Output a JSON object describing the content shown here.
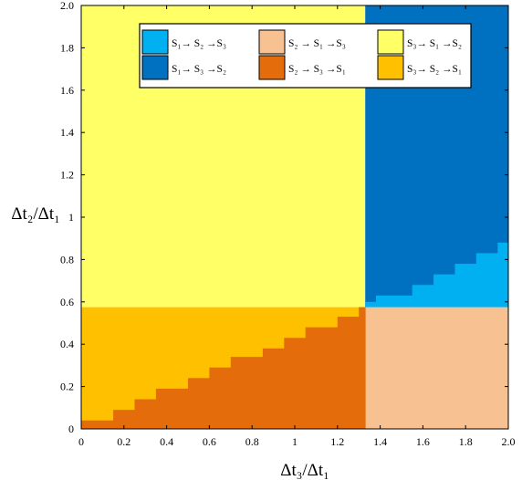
{
  "chart_data": {
    "type": "heatmap",
    "title": "",
    "xlabel": "Δt₃/Δt₁",
    "ylabel": "Δt₂/Δt₁",
    "xlim": [
      0,
      2.0
    ],
    "ylim": [
      0,
      2.0
    ],
    "x_ticks": [
      "0",
      "0.2",
      "0.4",
      "0.6",
      "0.8",
      "1",
      "1.2",
      "1.4",
      "1.6",
      "1.8",
      "2.0"
    ],
    "y_ticks": [
      "0",
      "0.2",
      "0.4",
      "0.6",
      "0.8",
      "1",
      "1.2",
      "1.4",
      "1.6",
      "1.8",
      "2.0"
    ],
    "x_split": 1.33,
    "y_split": 0.575,
    "legend_position": "top",
    "legend": [
      {
        "label": "S₁→ S₂ →S₃",
        "color": "#00b0f0"
      },
      {
        "label": "S₂ → S₁ →S₃",
        "color": "#f8c191"
      },
      {
        "label": "S₃→ S₁ →S₂",
        "color": "#ffff66"
      },
      {
        "label": "S₁→ S₃ →S₂",
        "color": "#0070c0"
      },
      {
        "label": "S₂ → S₃ →S₁",
        "color": "#e46c0a"
      },
      {
        "label": "S₃→ S₂ →S₁",
        "color": "#ffc000"
      }
    ],
    "regions": [
      {
        "order": "S₃→ S₁ →S₂",
        "color": "#ffff66",
        "x": [
          0,
          1.33
        ],
        "y": [
          0.575,
          2.0
        ]
      },
      {
        "order": "S₁→ S₃ →S₂",
        "color": "#0070c0",
        "x": [
          1.33,
          2.0
        ],
        "y": [
          0.575,
          2.0
        ]
      },
      {
        "order": "S₂ → S₁ →S₃",
        "color": "#f8c191",
        "x": [
          1.33,
          2.0
        ],
        "y": [
          0,
          0.575
        ]
      },
      {
        "order": "S₃→ S₂ →S₁",
        "color": "#ffc000",
        "x": [
          0,
          1.33
        ],
        "y": [
          0,
          0.575
        ]
      }
    ],
    "boundary_lower_left": {
      "below_color": "#e46c0a",
      "description_values": "staircase boundary y(x) between S₂→S₃→S₁ (below) and S₃→S₂→S₁ (above)",
      "steps": [
        {
          "x": [
            0.0,
            0.15
          ],
          "y": 0.04
        },
        {
          "x": [
            0.15,
            0.25
          ],
          "y": 0.09
        },
        {
          "x": [
            0.25,
            0.35
          ],
          "y": 0.14
        },
        {
          "x": [
            0.35,
            0.5
          ],
          "y": 0.19
        },
        {
          "x": [
            0.5,
            0.6
          ],
          "y": 0.24
        },
        {
          "x": [
            0.6,
            0.7
          ],
          "y": 0.29
        },
        {
          "x": [
            0.7,
            0.85
          ],
          "y": 0.34
        },
        {
          "x": [
            0.85,
            0.95
          ],
          "y": 0.38
        },
        {
          "x": [
            0.95,
            1.05
          ],
          "y": 0.43
        },
        {
          "x": [
            1.05,
            1.2
          ],
          "y": 0.48
        },
        {
          "x": [
            1.2,
            1.3
          ],
          "y": 0.53
        },
        {
          "x": [
            1.3,
            1.33
          ],
          "y": 0.575
        }
      ]
    },
    "boundary_upper_right": {
      "below_color": "#00b0f0",
      "description_values": "staircase boundary y(x) between S₁→S₂→S₃ (below) and S₁→S₃→S₂ (above)",
      "steps": [
        {
          "x": [
            1.33,
            1.38
          ],
          "y": 0.6
        },
        {
          "x": [
            1.38,
            1.55
          ],
          "y": 0.63
        },
        {
          "x": [
            1.55,
            1.65
          ],
          "y": 0.68
        },
        {
          "x": [
            1.65,
            1.75
          ],
          "y": 0.73
        },
        {
          "x": [
            1.75,
            1.85
          ],
          "y": 0.78
        },
        {
          "x": [
            1.85,
            1.95
          ],
          "y": 0.83
        },
        {
          "x": [
            1.95,
            2.0
          ],
          "y": 0.88
        }
      ]
    }
  }
}
